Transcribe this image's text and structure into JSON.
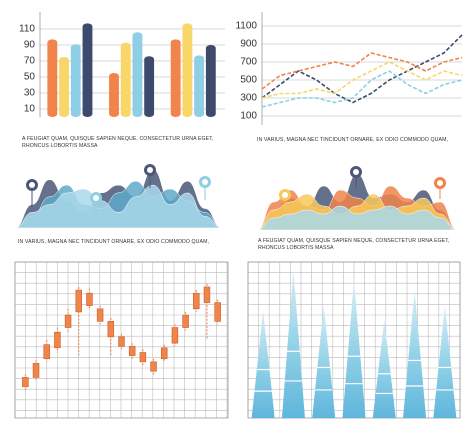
{
  "chart_data": [
    {
      "type": "bar",
      "categories": [
        null,
        null,
        null
      ],
      "series": [
        {
          "color": "#f0844a",
          "values": [
            97,
            55,
            97
          ]
        },
        {
          "color": "#f8d66a",
          "values": [
            75,
            93,
            117
          ]
        },
        {
          "color": "#8ecfe6",
          "values": [
            91,
            106,
            77
          ]
        },
        {
          "color": "#3e4a6b",
          "values": [
            117,
            76,
            90
          ]
        }
      ],
      "ylim": [
        0,
        125
      ],
      "yticks": [
        10,
        30,
        50,
        70,
        90,
        110
      ],
      "grid": true,
      "caption": "A FEUGIAT QUAM, QUISQUE SAPIEN NEQUE, CONSECTETUR URNA EGET, RHONCUS LOBORTIS MASSA"
    },
    {
      "type": "line",
      "categories": [
        null,
        null,
        null,
        null,
        null,
        null,
        null,
        null,
        null,
        null,
        null,
        null
      ],
      "series": [
        {
          "color": "#3e4a6b",
          "values": [
            300,
            450,
            600,
            500,
            350,
            250,
            350,
            500,
            600,
            700,
            800,
            1000
          ]
        },
        {
          "color": "#f0844a",
          "values": [
            400,
            550,
            600,
            650,
            700,
            650,
            800,
            750,
            700,
            600,
            700,
            750
          ]
        },
        {
          "color": "#f8d66a",
          "values": [
            300,
            350,
            350,
            400,
            350,
            500,
            600,
            700,
            600,
            500,
            600,
            550
          ]
        },
        {
          "color": "#8ecfe6",
          "values": [
            200,
            250,
            300,
            300,
            250,
            300,
            500,
            600,
            450,
            350,
            450,
            500
          ]
        }
      ],
      "ylim": [
        0,
        1200
      ],
      "yticks": [
        100,
        300,
        500,
        700,
        900,
        1100
      ],
      "grid": true,
      "caption": "IN VARIUS, MAGNA NEC TINCIDUNT ORNARE, EX ODIO COMMODO QUAM,"
    },
    {
      "type": "area",
      "ylim": [
        0,
        100
      ],
      "series": [
        {
          "color": "#4a5778",
          "values": [
            0,
            30,
            62,
            35,
            20,
            45,
            55,
            40,
            75,
            35,
            60,
            25,
            0
          ]
        },
        {
          "color": "#5fa8c9",
          "values": [
            0,
            15,
            40,
            55,
            30,
            25,
            45,
            60,
            40,
            50,
            35,
            20,
            0
          ]
        },
        {
          "color": "#a9d8ea",
          "values": [
            0,
            20,
            30,
            45,
            50,
            35,
            20,
            40,
            55,
            30,
            45,
            15,
            0
          ]
        }
      ],
      "caption": "IN VARIUS, MAGNA NEC TINCIDUNT ORNARE, EX ODIO COMMODO QUAM,"
    },
    {
      "type": "area",
      "ylim": [
        0,
        100
      ],
      "series": [
        {
          "color": "#4a5778",
          "values": [
            0,
            25,
            40,
            30,
            55,
            35,
            70,
            40,
            45,
            35,
            50,
            25,
            0
          ]
        },
        {
          "color": "#f0844a",
          "values": [
            0,
            35,
            50,
            30,
            25,
            50,
            40,
            30,
            55,
            40,
            30,
            35,
            0
          ]
        },
        {
          "color": "#f8c95a",
          "values": [
            0,
            25,
            35,
            45,
            30,
            20,
            30,
            45,
            25,
            30,
            40,
            20,
            0
          ]
        },
        {
          "color": "#a9d8ea",
          "values": [
            0,
            15,
            20,
            25,
            20,
            30,
            20,
            25,
            30,
            20,
            25,
            15,
            0
          ]
        }
      ],
      "caption": "A FEUGIAT QUAM, QUISQUE SAPIEN NEQUE, CONSECTETUR URNA EGET, RHONCUS LOBORTIS MASSA"
    },
    {
      "type": "candlestick",
      "ylim": [
        0,
        100
      ],
      "grid": true,
      "color": "#f0844a",
      "open": [
        20,
        26,
        38,
        45,
        58,
        68,
        80,
        70,
        62,
        52,
        46,
        42,
        36,
        38,
        48,
        58,
        70,
        84,
        74
      ],
      "close": [
        26,
        35,
        47,
        55,
        66,
        82,
        72,
        62,
        52,
        46,
        40,
        36,
        30,
        45,
        58,
        66,
        80,
        74,
        62
      ],
      "high": [
        28,
        37,
        50,
        58,
        70,
        84,
        83,
        72,
        64,
        54,
        48,
        44,
        38,
        47,
        60,
        68,
        82,
        86,
        76
      ],
      "low": [
        18,
        24,
        36,
        42,
        55,
        40,
        70,
        60,
        40,
        44,
        38,
        34,
        28,
        36,
        46,
        56,
        68,
        50,
        60
      ]
    },
    {
      "type": "cone",
      "ylim": [
        0,
        100
      ],
      "grid": true,
      "color": "#8ecfe6",
      "values": [
        69,
        95,
        72,
        88,
        63,
        82,
        72
      ]
    }
  ]
}
